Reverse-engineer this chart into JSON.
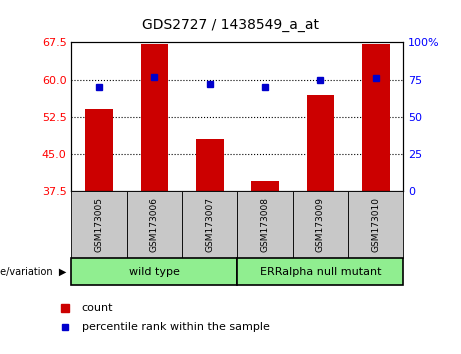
{
  "title": "GDS2727 / 1438549_a_at",
  "samples": [
    "GSM173005",
    "GSM173006",
    "GSM173007",
    "GSM173008",
    "GSM173009",
    "GSM173010"
  ],
  "bar_values": [
    54.0,
    67.2,
    48.0,
    39.5,
    57.0,
    67.2
  ],
  "dot_values": [
    70,
    77,
    72,
    70,
    75,
    76
  ],
  "bar_color": "#cc0000",
  "dot_color": "#0000cc",
  "ylim_left": [
    37.5,
    67.5
  ],
  "yticks_left": [
    37.5,
    45.0,
    52.5,
    60.0,
    67.5
  ],
  "ylim_right": [
    0,
    100
  ],
  "yticks_right": [
    0,
    25,
    50,
    75,
    100
  ],
  "ytick_labels_right": [
    "0",
    "25",
    "50",
    "75",
    "100%"
  ],
  "groups": [
    {
      "label": "wild type",
      "indices": [
        0,
        1,
        2
      ],
      "color": "#90ee90"
    },
    {
      "label": "ERRalpha null mutant",
      "indices": [
        3,
        4,
        5
      ],
      "color": "#90ee90"
    }
  ],
  "genotype_label": "genotype/variation",
  "legend_count_label": "count",
  "legend_pct_label": "percentile rank within the sample",
  "bar_width": 0.5,
  "background_label_row": "#c8c8c8",
  "dotted_line_color": "#000000",
  "dotted_yticks": [
    60.0,
    52.5,
    45.0
  ]
}
